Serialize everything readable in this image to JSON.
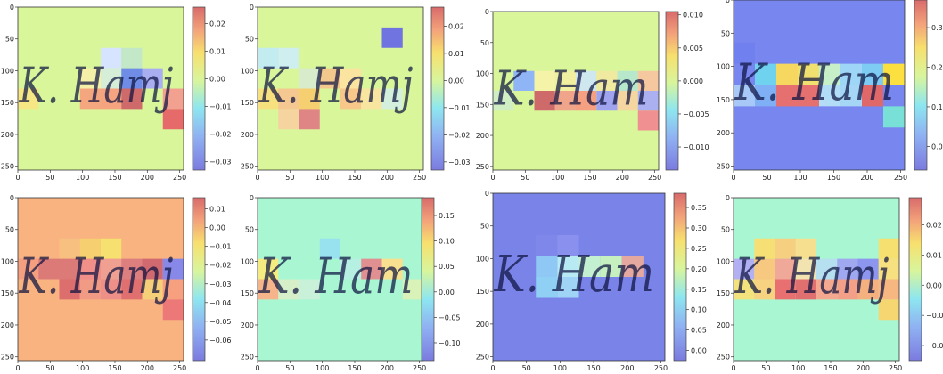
{
  "chart_data": [
    {
      "type": "heatmap",
      "background": "#d9f79a",
      "xticks": [
        "0",
        "50",
        "100",
        "150",
        "200",
        "250"
      ],
      "yticks": [
        "0",
        "50",
        "100",
        "150",
        "200",
        "250"
      ],
      "colorbar": {
        "range": [
          -0.033,
          0.026
        ],
        "ticks": [
          "0.02",
          "0.01",
          "0.00",
          "−0.01",
          "−0.02",
          "−0.03"
        ],
        "values": [
          0.02,
          0.01,
          0.0,
          -0.01,
          -0.02,
          -0.03
        ]
      },
      "cells": [
        [
          128,
          64,
          "#d6e4ff"
        ],
        [
          160,
          64,
          "#c2e8c8"
        ],
        [
          96,
          96,
          "#f5efa8"
        ],
        [
          128,
          96,
          "#d6eed8"
        ],
        [
          160,
          96,
          "#6f8de6"
        ],
        [
          192,
          96,
          "#a9aef0"
        ],
        [
          96,
          128,
          "#f4a77e"
        ],
        [
          128,
          128,
          "#f6a480"
        ],
        [
          160,
          128,
          "#cf6a6a"
        ],
        [
          224,
          128,
          "#f2a090"
        ],
        [
          0,
          128,
          "#f7e784"
        ],
        [
          224,
          160,
          "#e66a6a"
        ]
      ],
      "handwriting": "K. Hamj"
    },
    {
      "type": "heatmap",
      "background": "#d9f79a",
      "xticks": [
        "0",
        "50",
        "100",
        "150",
        "200",
        "250"
      ],
      "yticks": [
        "0",
        "50",
        "100",
        "150",
        "200",
        "250"
      ],
      "colorbar": {
        "range": [
          -0.033,
          0.027
        ],
        "ticks": [
          "0.02",
          "0.01",
          "0.00",
          "−0.01",
          "−0.02",
          "−0.03"
        ],
        "values": [
          0.02,
          0.01,
          0.0,
          -0.01,
          -0.02,
          -0.03
        ]
      },
      "cells": [
        [
          192,
          32,
          "#6f74e0"
        ],
        [
          0,
          64,
          "#c2ecf0"
        ],
        [
          32,
          64,
          "#cfeef0"
        ],
        [
          64,
          96,
          "#d8eccc"
        ],
        [
          96,
          96,
          "#f3c88c"
        ],
        [
          0,
          128,
          "#f7e07e"
        ],
        [
          32,
          128,
          "#f4c890"
        ],
        [
          64,
          128,
          "#f6d070"
        ],
        [
          128,
          96,
          "#fbe4a0"
        ],
        [
          32,
          160,
          "#f6d4a0"
        ],
        [
          64,
          160,
          "#e08585"
        ],
        [
          128,
          128,
          "#f7c88a"
        ],
        [
          160,
          128,
          "#f8e6a0"
        ],
        [
          192,
          128,
          "#d4f0dc"
        ]
      ],
      "handwriting": "K. Hamj"
    },
    {
      "type": "heatmap",
      "background": "#d9f79a",
      "xticks": [
        "0",
        "50",
        "100",
        "150",
        "200",
        "250"
      ],
      "yticks": [
        "0",
        "50",
        "100",
        "150",
        "200",
        "250"
      ],
      "colorbar": {
        "range": [
          -0.0135,
          0.0105
        ],
        "ticks": [
          "0.010",
          "0.005",
          "0.000",
          "−0.005",
          "−0.010"
        ],
        "values": [
          0.01,
          0.005,
          0.0,
          -0.005,
          -0.01
        ]
      },
      "cells": [
        [
          32,
          96,
          "#8fb5f6"
        ],
        [
          64,
          96,
          "#f5f3a8"
        ],
        [
          96,
          96,
          "#f0f0a0"
        ],
        [
          128,
          96,
          "#cfe8f0"
        ],
        [
          160,
          96,
          "#f0eaa0"
        ],
        [
          192,
          96,
          "#b8e8cc"
        ],
        [
          224,
          96,
          "#f5c8a0"
        ],
        [
          64,
          128,
          "#cf6a6a"
        ],
        [
          96,
          128,
          "#f0a48a"
        ],
        [
          128,
          128,
          "#f5a080"
        ],
        [
          160,
          128,
          "#a0a4ee"
        ],
        [
          192,
          128,
          "#f5d6a0"
        ],
        [
          224,
          128,
          "#aab0f0"
        ],
        [
          0,
          128,
          "#d0eec4"
        ],
        [
          224,
          160,
          "#f09090"
        ]
      ],
      "handwriting": "K. Ham"
    },
    {
      "type": "heatmap",
      "background": "#7887ef",
      "xticks": [
        "0",
        "50",
        "100",
        "150",
        "200",
        "250"
      ],
      "yticks": [
        "0",
        "50",
        "100",
        "150",
        "200",
        "250"
      ],
      "colorbar": {
        "range": [
          -0.06,
          0.37
        ],
        "ticks": [
          "0.3",
          "0.2",
          "0.1",
          "0.0"
        ],
        "values": [
          0.3,
          0.2,
          0.1,
          0.0
        ]
      },
      "cells": [
        [
          0,
          64,
          "#7080ee"
        ],
        [
          32,
          96,
          "#6fd3f0"
        ],
        [
          64,
          96,
          "#f6d860"
        ],
        [
          96,
          96,
          "#f0e070"
        ],
        [
          128,
          96,
          "#c7f0c8"
        ],
        [
          160,
          96,
          "#9dd6f6"
        ],
        [
          192,
          96,
          "#7ecbf4"
        ],
        [
          224,
          96,
          "#fbe040"
        ],
        [
          0,
          128,
          "#a8c8f8"
        ],
        [
          32,
          128,
          "#7fb0f6"
        ],
        [
          64,
          128,
          "#e67070"
        ],
        [
          96,
          128,
          "#e47070"
        ],
        [
          128,
          128,
          "#b3dcf6"
        ],
        [
          160,
          128,
          "#a6d6f6"
        ],
        [
          192,
          128,
          "#e06868"
        ],
        [
          224,
          160,
          "#79e0d8"
        ]
      ],
      "handwriting": "K. Ham"
    },
    {
      "type": "heatmap",
      "background": "#f9b380",
      "xticks": [
        "0",
        "50",
        "100",
        "150",
        "200",
        "250"
      ],
      "yticks": [
        "0",
        "50",
        "100",
        "150",
        "200",
        "250"
      ],
      "colorbar": {
        "range": [
          -0.071,
          0.016
        ],
        "ticks": [
          "0.01",
          "0.00",
          "−0.01",
          "−0.02",
          "−0.03",
          "−0.04",
          "−0.05",
          "−0.06"
        ],
        "values": [
          0.01,
          0.0,
          -0.01,
          -0.02,
          -0.03,
          -0.04,
          -0.05,
          -0.06
        ]
      },
      "cells": [
        [
          64,
          64,
          "#f8c080"
        ],
        [
          96,
          64,
          "#f6d070"
        ],
        [
          128,
          64,
          "#f6e070"
        ],
        [
          0,
          96,
          "#f4a080"
        ],
        [
          32,
          96,
          "#dc7a78"
        ],
        [
          64,
          96,
          "#dc7a78"
        ],
        [
          96,
          96,
          "#f09088"
        ],
        [
          128,
          96,
          "#f0a090"
        ],
        [
          160,
          96,
          "#dd7f7f"
        ],
        [
          192,
          96,
          "#d06a70"
        ],
        [
          224,
          96,
          "#8888e8"
        ],
        [
          64,
          128,
          "#dd6e6e"
        ],
        [
          96,
          128,
          "#f19a84"
        ],
        [
          128,
          128,
          "#ee9088"
        ],
        [
          160,
          128,
          "#e07070"
        ],
        [
          192,
          128,
          "#f6d078"
        ],
        [
          224,
          128,
          "#f6a080"
        ],
        [
          224,
          160,
          "#ec7878"
        ]
      ],
      "handwriting": "K. Hamj"
    },
    {
      "type": "heatmap",
      "background": "#a8f7d2",
      "xticks": [
        "0",
        "50",
        "100",
        "150",
        "200",
        "250"
      ],
      "yticks": [
        "0",
        "50",
        "100",
        "150",
        "200",
        "250"
      ],
      "colorbar": {
        "range": [
          -0.135,
          0.185
        ],
        "ticks": [
          "0.15",
          "0.10",
          "0.05",
          "0.00",
          "−0.05",
          "−0.10"
        ],
        "values": [
          0.15,
          0.1,
          0.05,
          0.0,
          -0.05,
          -0.1
        ]
      },
      "cells": [
        [
          96,
          64,
          "#98e2f0"
        ],
        [
          0,
          96,
          "#f4ec80"
        ],
        [
          128,
          96,
          "#b6f0e2"
        ],
        [
          160,
          96,
          "#e09090"
        ],
        [
          192,
          96,
          "#f7e090"
        ],
        [
          0,
          128,
          "#f5b48a"
        ],
        [
          32,
          128,
          "#d6efc8"
        ],
        [
          64,
          128,
          "#c9f0d8"
        ],
        [
          224,
          128,
          "#d9f2b8"
        ]
      ],
      "handwriting": "K. Ham"
    },
    {
      "type": "heatmap",
      "background": "#7a84e8",
      "xticks": [
        "0",
        "50",
        "100",
        "150",
        "200",
        "250"
      ],
      "yticks": [
        "0",
        "50",
        "100",
        "150",
        "200",
        "250"
      ],
      "colorbar": {
        "range": [
          -0.025,
          0.385
        ],
        "ticks": [
          "0.35",
          "0.30",
          "0.25",
          "0.20",
          "0.15",
          "0.10",
          "0.05",
          "0.00"
        ],
        "values": [
          0.35,
          0.3,
          0.25,
          0.2,
          0.15,
          0.1,
          0.05,
          0.0
        ]
      },
      "cells": [
        [
          64,
          64,
          "#7f88ea"
        ],
        [
          96,
          64,
          "#8a90ee"
        ],
        [
          64,
          96,
          "#8fc8f4"
        ],
        [
          96,
          96,
          "#b8eaf4"
        ],
        [
          128,
          96,
          "#c2f0d0"
        ],
        [
          160,
          96,
          "#c7f0c0"
        ],
        [
          192,
          96,
          "#e4a8a0"
        ],
        [
          64,
          128,
          "#8fd0f4"
        ],
        [
          96,
          128,
          "#a0d4f6"
        ]
      ],
      "handwriting": "K. Ham"
    },
    {
      "type": "heatmap",
      "background": "#a8f7d2",
      "xticks": [
        "0",
        "50",
        "100",
        "150",
        "200",
        "250"
      ],
      "yticks": [
        "0",
        "50",
        "100",
        "150",
        "200",
        "250"
      ],
      "colorbar": {
        "range": [
          -0.025,
          0.029
        ],
        "ticks": [
          "0.02",
          "0.01",
          "0.00",
          "−0.01",
          "−0.02"
        ],
        "values": [
          0.02,
          0.01,
          0.0,
          -0.01,
          -0.02
        ]
      },
      "cells": [
        [
          32,
          64,
          "#f6e076"
        ],
        [
          64,
          64,
          "#f6d080"
        ],
        [
          96,
          64,
          "#f6e090"
        ],
        [
          224,
          64,
          "#f6e070"
        ],
        [
          0,
          96,
          "#b2b0f2"
        ],
        [
          32,
          96,
          "#f6c880"
        ],
        [
          64,
          96,
          "#f0a898"
        ],
        [
          96,
          96,
          "#f2e4b0"
        ],
        [
          128,
          96,
          "#b6e0f0"
        ],
        [
          160,
          96,
          "#a0a8f0"
        ],
        [
          192,
          96,
          "#8c96ee"
        ],
        [
          224,
          96,
          "#f7e080"
        ],
        [
          0,
          128,
          "#f4e27c"
        ],
        [
          32,
          128,
          "#f7d280"
        ],
        [
          64,
          128,
          "#e87070"
        ],
        [
          96,
          128,
          "#e07070"
        ],
        [
          128,
          128,
          "#f4a890"
        ],
        [
          160,
          128,
          "#f4a088"
        ],
        [
          192,
          128,
          "#f5b080"
        ],
        [
          224,
          128,
          "#f6b880"
        ],
        [
          224,
          160,
          "#f6d670"
        ]
      ],
      "handwriting": "K. Hamj"
    }
  ]
}
